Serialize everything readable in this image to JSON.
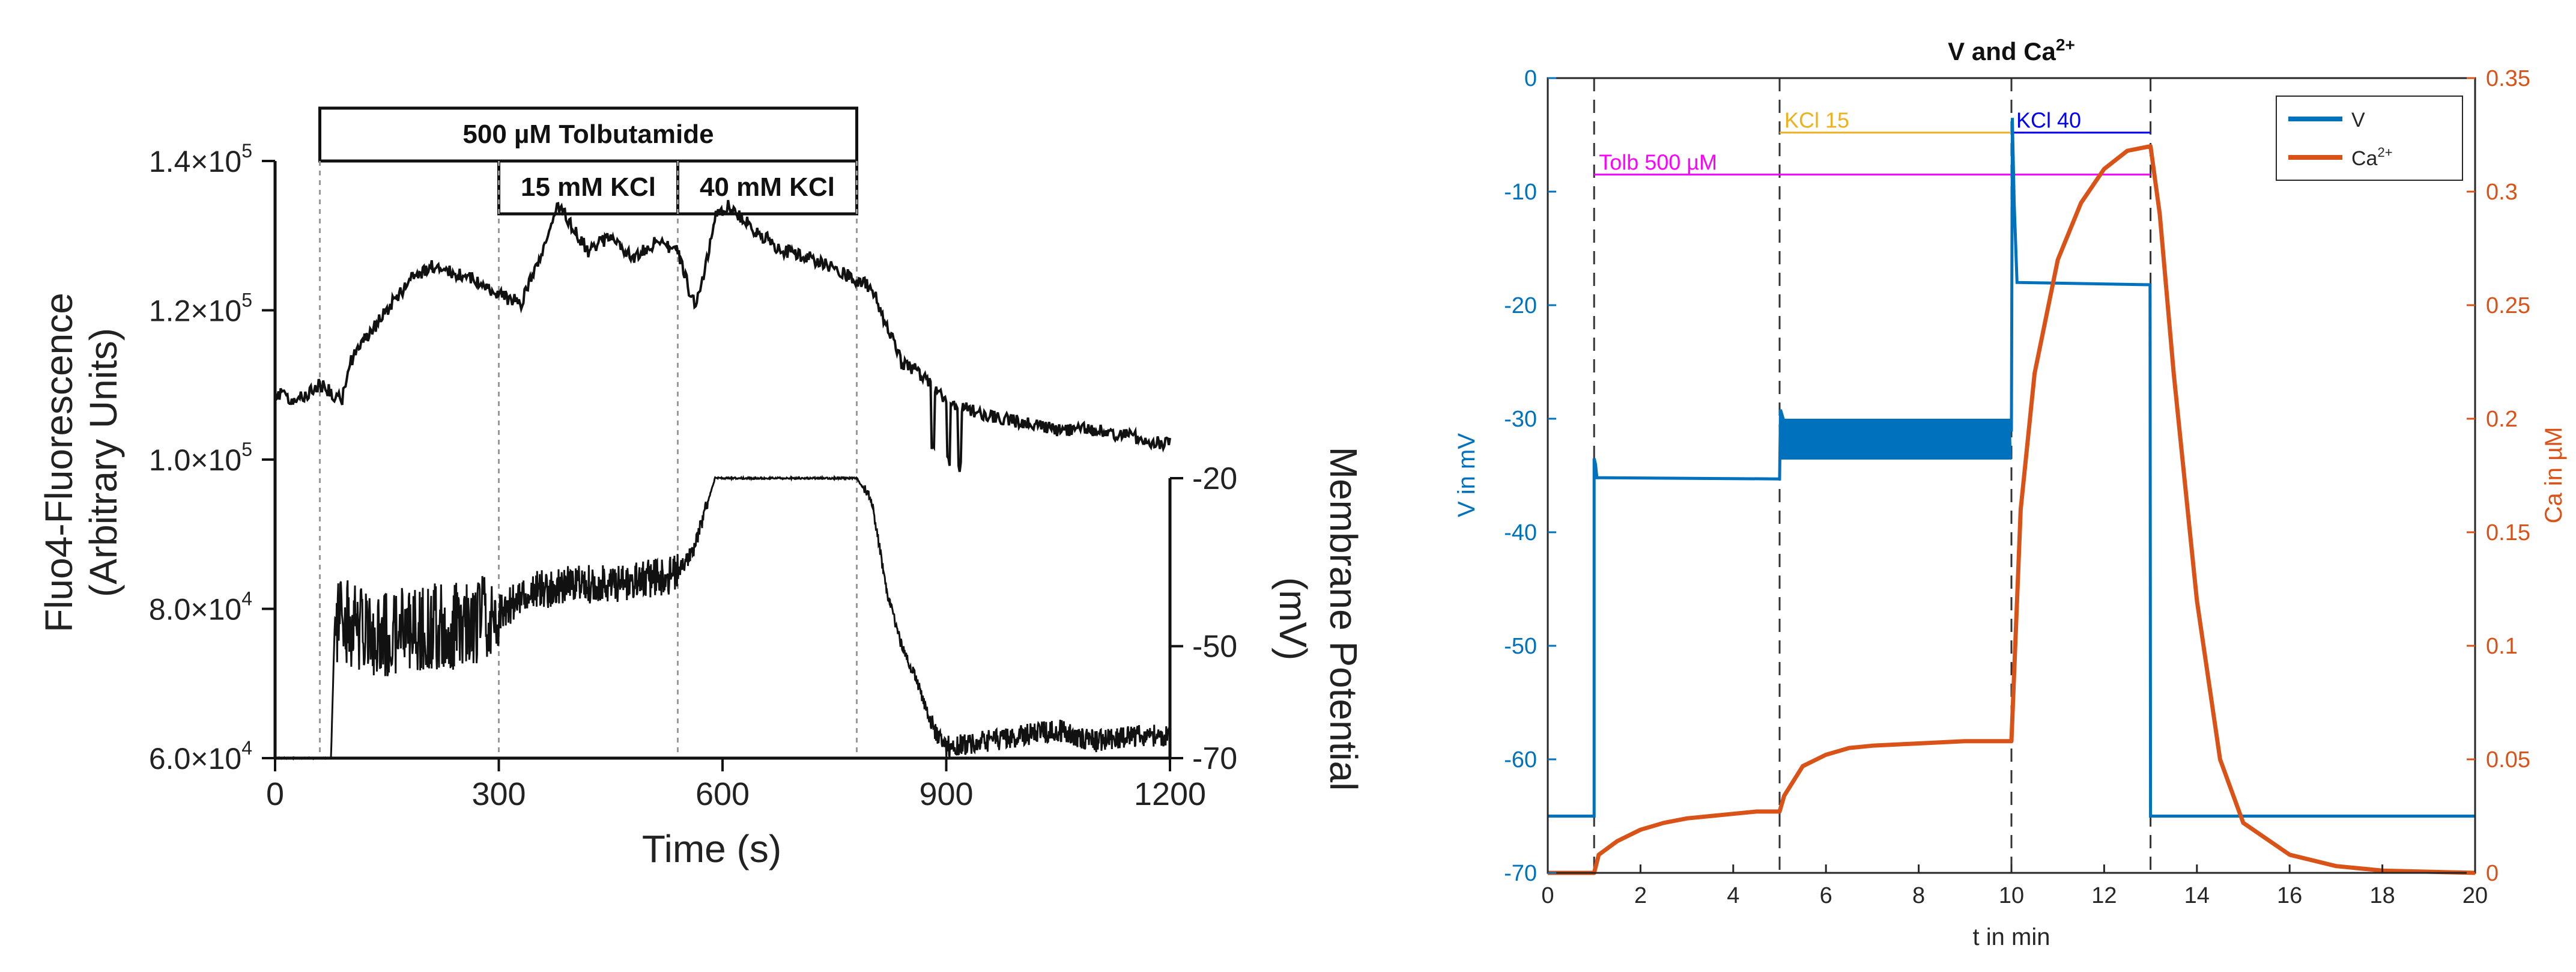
{
  "chart_data": [
    {
      "type": "line",
      "panel": "left",
      "xlabel": "Time (s)",
      "xlim": [
        0,
        1200
      ],
      "x_ticks": [
        "0",
        "300",
        "600",
        "900",
        "1200"
      ],
      "ylabel_lines": [
        "Fluo4-Fluorescence",
        "(Arbitrary Units)"
      ],
      "ylim": [
        60000,
        140000
      ],
      "y_ticks": [
        {
          "v": 60000,
          "label": "6.0×10",
          "exp": "4"
        },
        {
          "v": 80000,
          "label": "8.0×10",
          "exp": "4"
        },
        {
          "v": 100000,
          "label": "1.0×10",
          "exp": "5"
        },
        {
          "v": 120000,
          "label": "1.2×10",
          "exp": "5"
        },
        {
          "v": 140000,
          "label": "1.4×10",
          "exp": "5"
        }
      ],
      "y2label_lines": [
        "Membrane Potential",
        "(mV)"
      ],
      "y2_ticks": [
        {
          "v": -20,
          "label": "-20"
        },
        {
          "v": -50,
          "label": "-50"
        },
        {
          "v": -70,
          "label": "-70"
        }
      ],
      "y2_range": [
        -70,
        -20
      ],
      "event_lines_x": [
        60,
        300,
        540,
        780
      ],
      "bars": [
        {
          "label": "500 µM Tolbutamide",
          "x0": 60,
          "x1": 780,
          "row": 0
        },
        {
          "label": "15 mM KCl",
          "x0": 300,
          "x1": 540,
          "row": 1
        },
        {
          "label": "40 mM KCl",
          "x0": 540,
          "x1": 780,
          "row": 1
        }
      ],
      "series": [
        {
          "name": "Fluo4 fluorescence",
          "x": [
            0,
            30,
            60,
            90,
            100,
            120,
            150,
            180,
            210,
            240,
            270,
            300,
            330,
            360,
            380,
            400,
            420,
            450,
            480,
            510,
            540,
            560,
            570,
            590,
            610,
            640,
            680,
            720,
            760,
            780,
            800,
            820,
            840,
            860,
            880,
            900,
            920,
            950,
            1000,
            1050,
            1100,
            1150,
            1200
          ],
          "values": [
            109000,
            108000,
            110000,
            108000,
            113000,
            116000,
            120000,
            124000,
            126000,
            125000,
            124000,
            122000,
            121000,
            128000,
            134000,
            131000,
            128000,
            130000,
            127000,
            129000,
            128000,
            121000,
            122000,
            133000,
            134000,
            131000,
            128000,
            127000,
            125000,
            124000,
            123000,
            118000,
            113000,
            112000,
            110000,
            108000,
            107000,
            106000,
            105000,
            104000,
            104000,
            103000,
            102000
          ]
        },
        {
          "name": "Membrane potential (mV)",
          "x": [
            0,
            60,
            75,
            80,
            100,
            150,
            200,
            250,
            300,
            350,
            400,
            450,
            500,
            540,
            560,
            590,
            620,
            700,
            780,
            800,
            820,
            840,
            860,
            880,
            900,
            950,
            1000,
            1050,
            1100,
            1150,
            1200
          ],
          "values": [
            -70,
            -70,
            -70,
            -46,
            -46,
            -48,
            -47,
            -46,
            -44,
            -40,
            -39,
            -39,
            -38,
            -37,
            -33,
            -20,
            -20,
            -20,
            -20,
            -24,
            -40,
            -50,
            -56,
            -64,
            -68,
            -67,
            -66,
            -65,
            -67,
            -66,
            -66
          ]
        }
      ]
    },
    {
      "type": "line",
      "panel": "right",
      "title": "V and Ca",
      "title_sup": "2+",
      "xlabel": "t in min",
      "xlim": [
        0,
        20
      ],
      "x_ticks": [
        "0",
        "2",
        "4",
        "6",
        "8",
        "10",
        "12",
        "14",
        "16",
        "18",
        "20"
      ],
      "ylabel": "V in mV",
      "ylim": [
        -70,
        0
      ],
      "y_ticks": [
        "0",
        "-10",
        "-20",
        "-30",
        "-40",
        "-50",
        "-60",
        "-70"
      ],
      "y2label": "Ca in µM",
      "y2lim": [
        0,
        0.35
      ],
      "y2_ticks": [
        "0.35",
        "0.3",
        "0.25",
        "0.2",
        "0.15",
        "0.1",
        "0.05",
        "0"
      ],
      "event_lines_x": [
        1,
        5,
        10,
        13
      ],
      "annotations": [
        {
          "label": "Tolb 500 µM",
          "x0": 1,
          "x1": 13,
          "v": -8.5,
          "color": "#ff00ff"
        },
        {
          "label": "KCl 15",
          "x0": 5,
          "x1": 13,
          "v": -4.8,
          "color": "#edb120"
        },
        {
          "label": "KCl 40",
          "x0": 10,
          "x1": 13,
          "v": -4.8,
          "color": "#0000ff"
        }
      ],
      "legend": {
        "position": "top-right",
        "entries": [
          "V",
          "Ca"
        ],
        "ca_sup": "2+"
      },
      "series": [
        {
          "name": "V",
          "color": "#0072bd",
          "x": [
            0,
            1,
            1,
            1.03,
            1.06,
            1.2,
            4.99,
            5,
            5.02,
            5.15,
            9.99,
            10,
            10.02,
            10.06,
            10.12,
            12.99,
            13,
            20
          ],
          "values": [
            -65,
            -65,
            -33.5,
            -34,
            -35.2,
            -35.2,
            -35.3,
            -35.3,
            -29.2,
            -31,
            -31,
            -31,
            -3.5,
            -11,
            -18,
            -18.2,
            -65,
            -65
          ]
        },
        {
          "name": "Ca",
          "color": "#d95319",
          "x": [
            0,
            1,
            1.1,
            1.5,
            2,
            2.5,
            3,
            3.5,
            4,
            4.5,
            5,
            5.1,
            5.5,
            6,
            6.5,
            7,
            8,
            9,
            10,
            10.2,
            10.5,
            11,
            11.5,
            12,
            12.5,
            13,
            13.2,
            13.5,
            14,
            14.5,
            15,
            16,
            17,
            18,
            19,
            20
          ],
          "values": [
            0,
            0,
            0.008,
            0.014,
            0.019,
            0.022,
            0.024,
            0.025,
            0.026,
            0.027,
            0.027,
            0.034,
            0.047,
            0.052,
            0.055,
            0.056,
            0.057,
            0.058,
            0.058,
            0.16,
            0.22,
            0.27,
            0.295,
            0.31,
            0.318,
            0.32,
            0.29,
            0.22,
            0.12,
            0.05,
            0.022,
            0.008,
            0.003,
            0.001,
            0.0005,
            0
          ]
        }
      ]
    }
  ]
}
